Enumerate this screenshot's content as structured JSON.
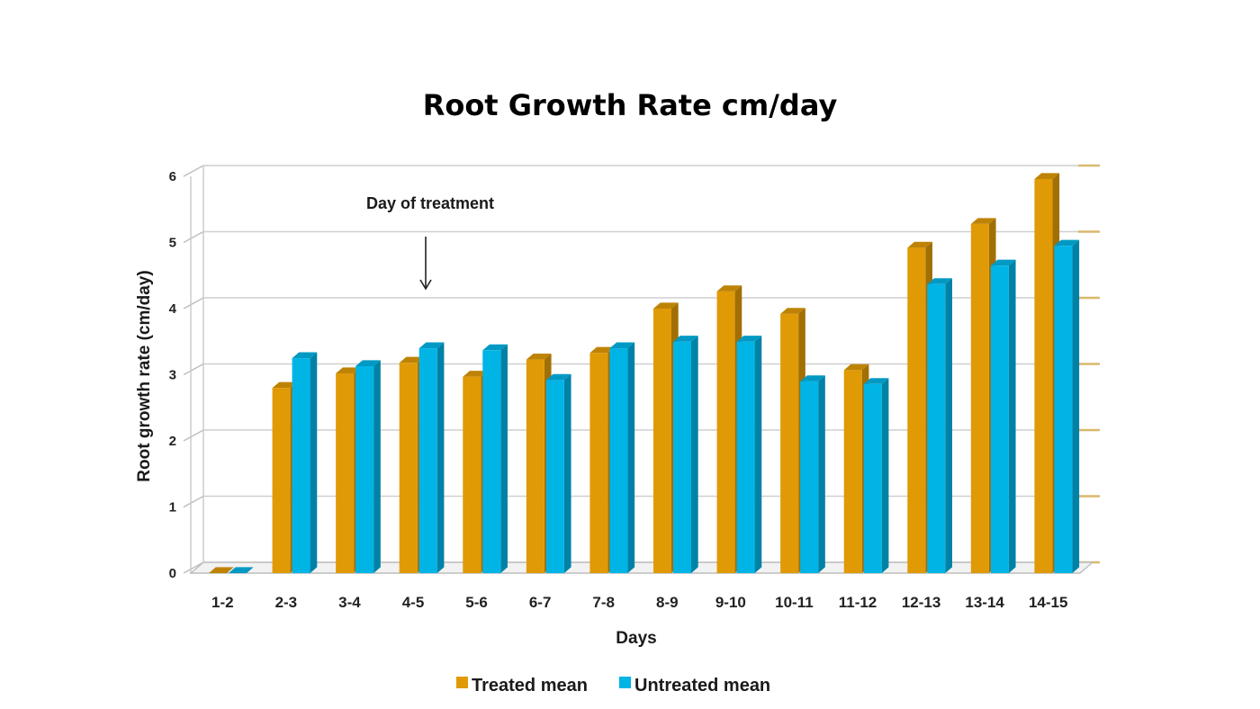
{
  "chart_data": {
    "type": "bar",
    "title": "Root Growth Rate cm/day",
    "xlabel": "Days",
    "ylabel": "Root growth rate (cm/day)",
    "ylim": [
      0,
      6
    ],
    "yticks": [
      "0",
      "1",
      "2",
      "3",
      "4",
      "5",
      "6"
    ],
    "categories": [
      "1-2",
      "2-3",
      "3-4",
      "4-5",
      "5-6",
      "6-7",
      "7-8",
      "8-9",
      "9-10",
      "10-11",
      "11-12",
      "12-13",
      "13-14",
      "14-15"
    ],
    "series": [
      {
        "name": "Treated mean",
        "color": "#E09A06",
        "values": [
          0,
          2.8,
          3.02,
          3.18,
          2.97,
          3.23,
          3.33,
          4.0,
          4.26,
          3.92,
          3.07,
          4.92,
          5.28,
          5.96
        ]
      },
      {
        "name": "Untreated mean",
        "color": "#00B4E6",
        "values": [
          0,
          3.25,
          3.13,
          3.4,
          3.37,
          2.92,
          3.4,
          3.5,
          3.5,
          2.9,
          2.86,
          4.37,
          4.65,
          4.95
        ]
      }
    ],
    "grid": true,
    "legend_position": "bottom",
    "annotation": {
      "text": "Day of treatment",
      "category": "4-5",
      "arrow": "down"
    }
  }
}
